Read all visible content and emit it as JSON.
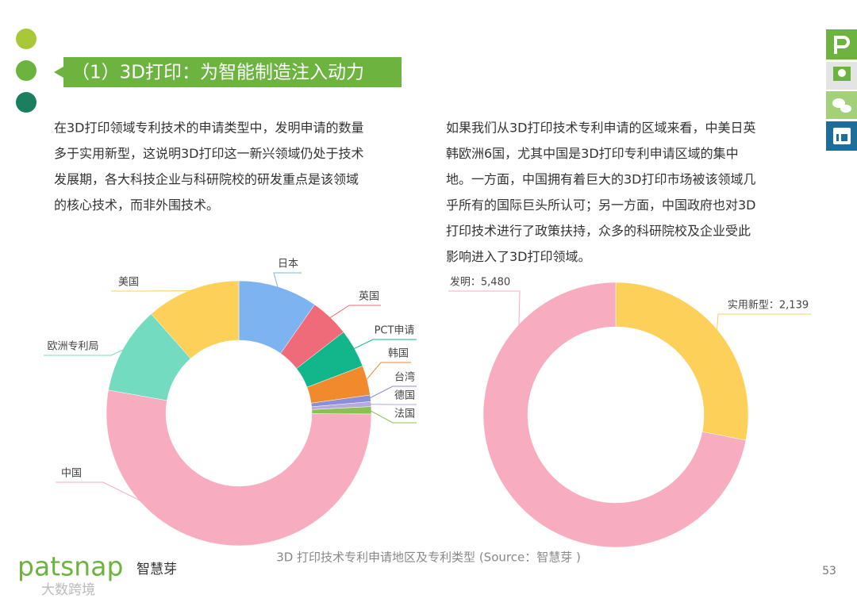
{
  "header": {
    "title": "（1）3D打印：为智能制造注入动力"
  },
  "paragraphs": [
    [
      "在3D打印领域专利技术的申请类型中，发明申请的数量",
      "多于实用新型，这说明3D打印这一新兴领域仍处于技术",
      "发展期，各大科技企业与科研院校的研发重点是该领域",
      "的核心技术，而非外围技术。"
    ],
    [
      "如果我们从3D打印技术专利申请的区域来看，中美日英",
      "韩欧洲6国，尤其中国是3D打印专利申请区域的集中",
      "地。一方面，中国拥有着巨大的3D打印市场被该领域几",
      "乎所有的国际巨头所认可；另一方面，中国政府也对3D",
      "打印技术进行了政策扶持，众多的科研院校及企业受此",
      "影响进入了3D打印领域。"
    ]
  ],
  "chart_data": [
    {
      "type": "donut",
      "categories": [
        "日本",
        "英国",
        "PCT申请",
        "韩国",
        "台湾",
        "德国",
        "法国",
        "中国",
        "欧洲专利局",
        "美国"
      ],
      "values": [
        9.7,
        4.8,
        4.7,
        3.6,
        0.8,
        0.6,
        0.9,
        52.7,
        10.7,
        11.5
      ],
      "colors": [
        "#7cb3f0",
        "#ef6b7a",
        "#13b58a",
        "#f08a2c",
        "#8a8fd8",
        "#b7a8e0",
        "#8cc152",
        "#f7adbf",
        "#72dbc0",
        "#fdd05a"
      ]
    },
    {
      "type": "donut",
      "values": [
        2139,
        5480
      ],
      "value_labels": [
        "实用新型：2,139",
        "发明：5,480"
      ],
      "colors": [
        "#fdd05a",
        "#f7adbf"
      ]
    }
  ],
  "caption": "3D 打印技术专利申请地区及专利类型 (Source：智慧芽 )",
  "page_number": "53",
  "logo": {
    "brand": "patsnap",
    "chinese": "智慧芽"
  },
  "watermark": "大数跨境"
}
